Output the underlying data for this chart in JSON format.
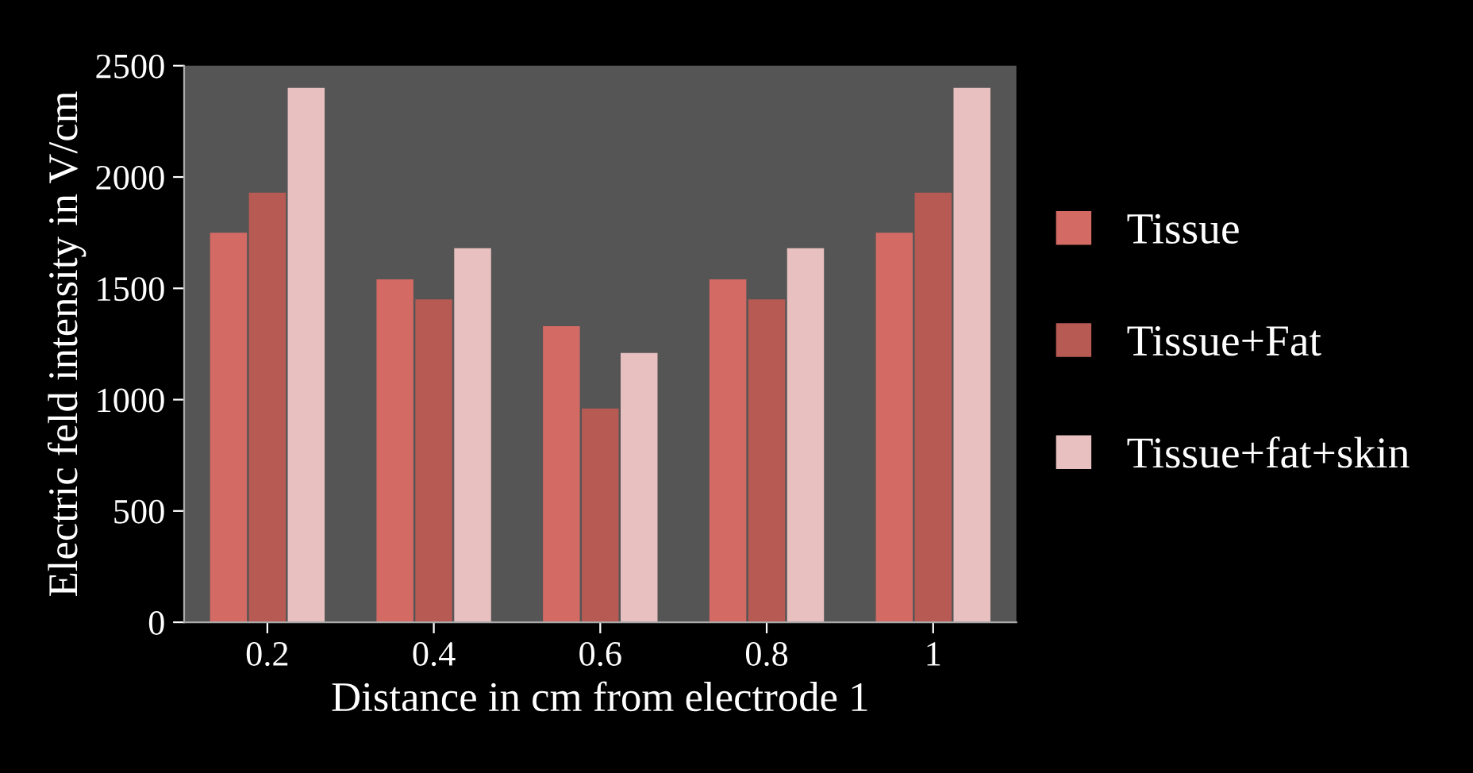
{
  "chart_data": {
    "type": "bar",
    "xlabel": "Distance in cm from electrode 1",
    "ylabel": "Electric feld intensity in V/cm",
    "categories": [
      "0.2",
      "0.4",
      "0.6",
      "0.8",
      "1"
    ],
    "series": [
      {
        "name": "Tissue",
        "color": "#d46a64",
        "values": [
          1750,
          1540,
          1330,
          1540,
          1750
        ]
      },
      {
        "name": "Tissue+Fat",
        "color": "#b85a54",
        "values": [
          1930,
          1450,
          960,
          1450,
          1930
        ]
      },
      {
        "name": "Tissue+fat+skin",
        "color": "#e8c0c0",
        "values": [
          2400,
          1680,
          1210,
          1680,
          2400
        ]
      }
    ],
    "ylim": [
      0,
      2500
    ],
    "yticks": [
      0,
      500,
      1000,
      1500,
      2000,
      2500
    ],
    "legend": "right"
  }
}
